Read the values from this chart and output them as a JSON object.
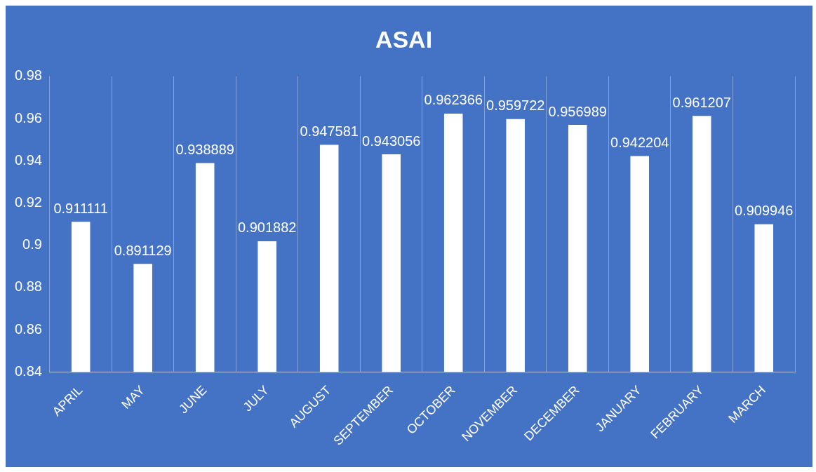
{
  "chart_data": {
    "type": "bar",
    "title": "ASAI",
    "categories": [
      "APRIL",
      "MAY",
      "JUNE",
      "JULY",
      "AUGUST",
      "SEPTEMBER",
      "OCTOBER",
      "NOVEMBER",
      "DECEMBER",
      "JANUARY",
      "FEBRUARY",
      "MARCH"
    ],
    "values": [
      0.911111,
      0.891129,
      0.938889,
      0.901882,
      0.947581,
      0.943056,
      0.962366,
      0.959722,
      0.956989,
      0.942204,
      0.961207,
      0.909946
    ],
    "color": "#ffffff",
    "ylim": [
      0.84,
      0.98
    ],
    "yticks": [
      0.84,
      0.86,
      0.88,
      0.9,
      0.92,
      0.94,
      0.96,
      0.98
    ],
    "grid": "x",
    "data_labels": true
  }
}
